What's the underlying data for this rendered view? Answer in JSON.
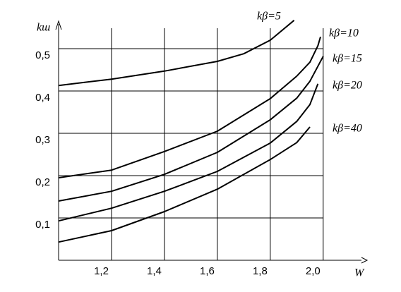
{
  "chart_data": {
    "type": "line",
    "x_label": "W",
    "y_label": "kш",
    "x": [
      1.0,
      1.2,
      1.4,
      1.6,
      1.8,
      1.9,
      1.95,
      1.98
    ],
    "series": [
      {
        "name": "kβ=5",
        "color": "#000000",
        "x": [
          1.0,
          1.2,
          1.4,
          1.6,
          1.7,
          1.8,
          1.89
        ],
        "values": [
          0.413,
          0.428,
          0.447,
          0.47,
          0.488,
          0.52,
          0.567
        ]
      },
      {
        "name": "kβ=10",
        "color": "#000000",
        "x": [
          1.0,
          1.2,
          1.4,
          1.6,
          1.8,
          1.9,
          1.95,
          1.98,
          1.99
        ],
        "values": [
          0.195,
          0.213,
          0.257,
          0.305,
          0.382,
          0.435,
          0.468,
          0.507,
          0.528
        ]
      },
      {
        "name": "kβ=15",
        "color": "#000000",
        "x": [
          1.0,
          1.2,
          1.4,
          1.6,
          1.8,
          1.9,
          1.95,
          2.0
        ],
        "values": [
          0.14,
          0.163,
          0.203,
          0.255,
          0.332,
          0.383,
          0.423,
          0.482
        ]
      },
      {
        "name": "kβ=20",
        "color": "#000000",
        "x": [
          1.0,
          1.2,
          1.4,
          1.6,
          1.8,
          1.9,
          1.95,
          1.98
        ],
        "values": [
          0.093,
          0.123,
          0.163,
          0.21,
          0.277,
          0.328,
          0.368,
          0.417
        ]
      },
      {
        "name": "kβ=40",
        "color": "#000000",
        "x": [
          1.0,
          1.2,
          1.4,
          1.6,
          1.8,
          1.9,
          1.95
        ],
        "values": [
          0.043,
          0.07,
          0.115,
          0.168,
          0.238,
          0.278,
          0.315
        ]
      }
    ],
    "xlim": [
      1.0,
      2.15
    ],
    "ylim": [
      0,
      0.57
    ],
    "xticks": [
      {
        "value": 1.2,
        "label": "1,2"
      },
      {
        "value": 1.4,
        "label": "1,4"
      },
      {
        "value": 1.6,
        "label": "1,6"
      },
      {
        "value": 1.8,
        "label": "1,8"
      },
      {
        "value": 2.0,
        "label": "2,0"
      }
    ],
    "yticks": [
      {
        "value": 0.1,
        "label": "0,1"
      },
      {
        "value": 0.2,
        "label": "0,2"
      },
      {
        "value": 0.3,
        "label": "0,3"
      },
      {
        "value": 0.4,
        "label": "0,4"
      },
      {
        "value": 0.5,
        "label": "0,5"
      }
    ],
    "grid": true
  }
}
